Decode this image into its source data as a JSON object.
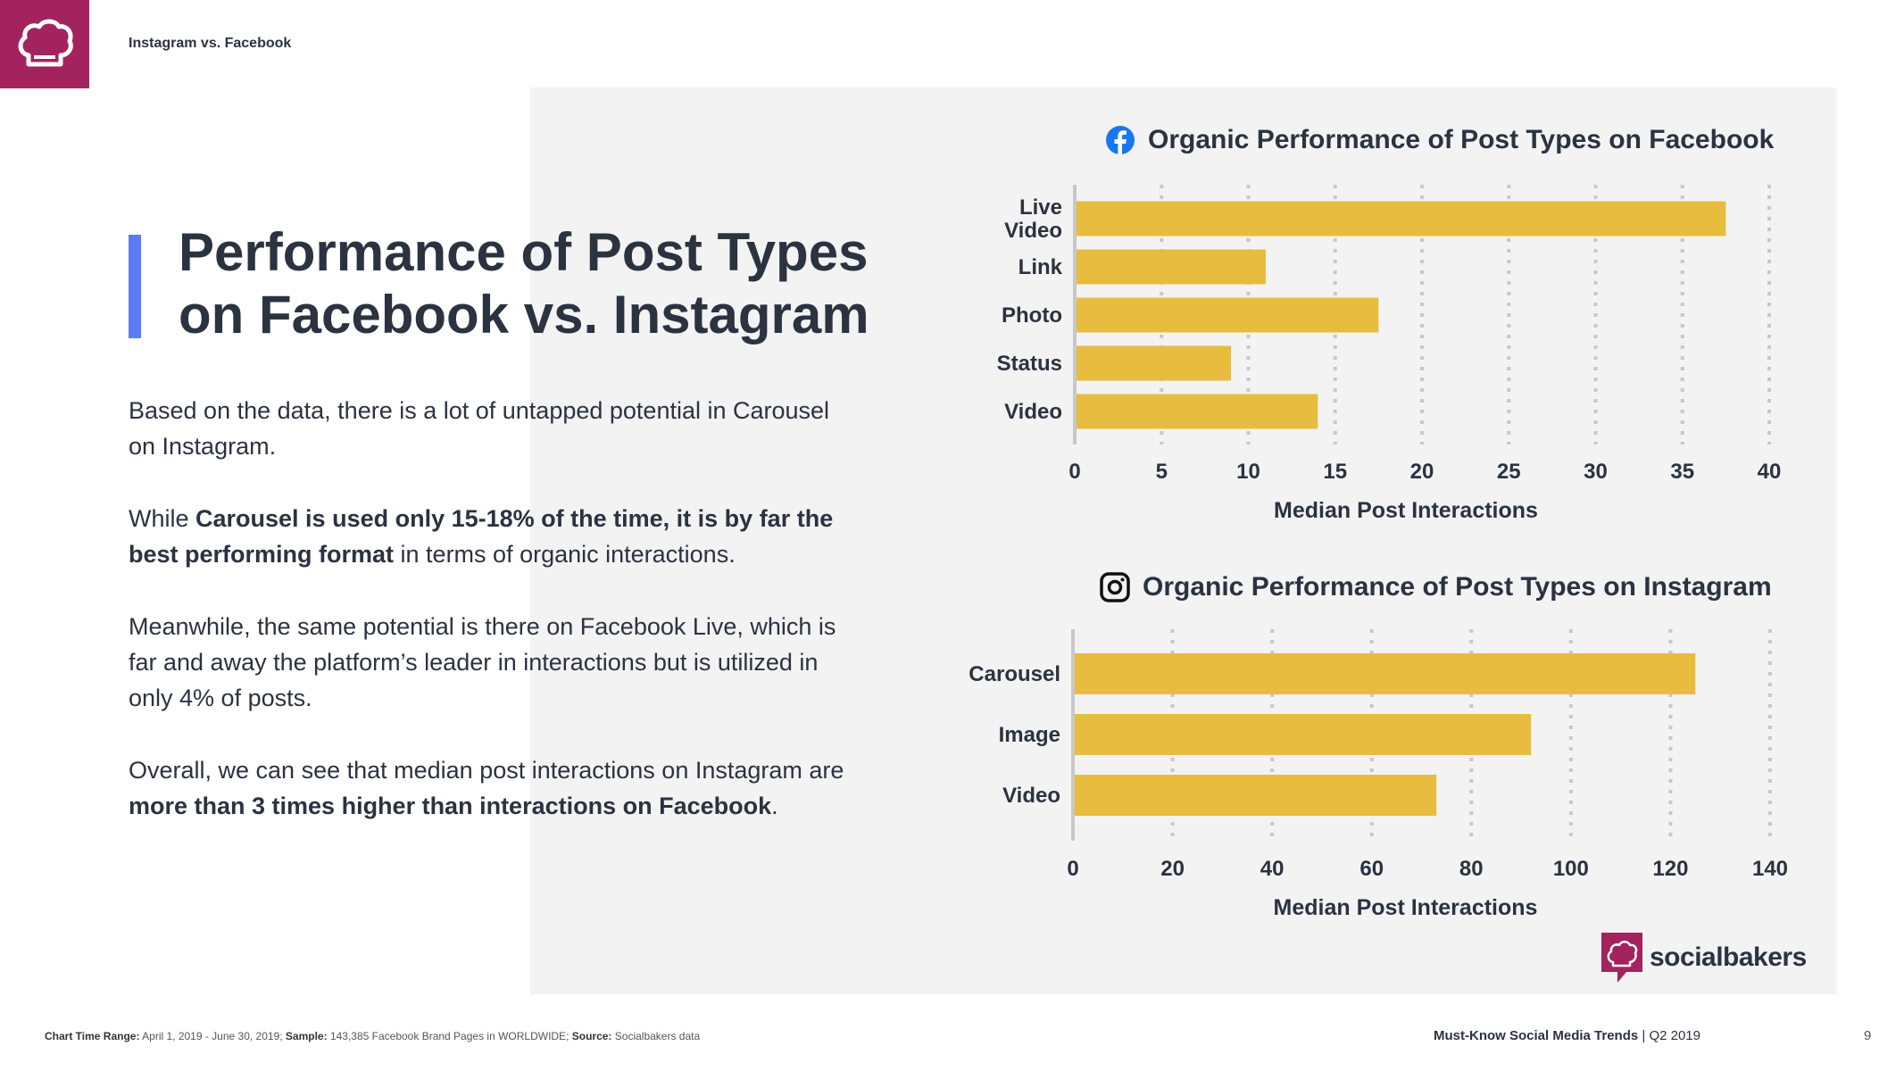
{
  "header": {
    "section_title": "Instagram vs. Facebook",
    "logo_icon": "chef-hat-icon"
  },
  "headline": {
    "line1": "Performance of Post Types",
    "line2": "on Facebook vs. Instagram"
  },
  "body": {
    "p1": "Based on the data, there is a lot of untapped potential in Carousel on Instagram.",
    "p2_prefix": "While ",
    "p2_bold": "Carousel is used only 15-18% of the time, it is by far the best performing format",
    "p2_suffix": " in terms of organic interactions.",
    "p3": "Meanwhile, the same potential is there on Facebook Live, which is far and away the platform’s leader in interactions but is utilized in only 4% of posts.",
    "p4_prefix": "Overall, we can see that median post interactions on Instagram are ",
    "p4_bold": "more than 3 times higher than interactions on Facebook",
    "p4_suffix": "."
  },
  "colors": {
    "brand": "#a3235f",
    "accent": "#5b7cf2",
    "bar": "#e8bc3f",
    "panel": "#f3f3f3",
    "text": "#2b3240"
  },
  "chart_data": [
    {
      "type": "bar",
      "orientation": "horizontal",
      "title": "Organic Performance of Post Types on Facebook",
      "icon": "facebook-icon",
      "categories": [
        "Live Video",
        "Link",
        "Photo",
        "Status",
        "Video"
      ],
      "category_lines": [
        [
          "Live",
          "Video"
        ],
        [
          "Link"
        ],
        [
          "Photo"
        ],
        [
          "Status"
        ],
        [
          "Video"
        ]
      ],
      "values": [
        37.5,
        11,
        17.5,
        9,
        14
      ],
      "xlabel": "Median Post Interactions",
      "ylabel": "",
      "xlim": [
        0,
        40
      ],
      "ticks": [
        0,
        5,
        10,
        15,
        20,
        25,
        30,
        35,
        40
      ],
      "grid": "dotted vertical"
    },
    {
      "type": "bar",
      "orientation": "horizontal",
      "title": "Organic Performance of Post Types on Instagram",
      "icon": "instagram-icon",
      "categories": [
        "Carousel",
        "Image",
        "Video"
      ],
      "category_lines": [
        [
          "Carousel"
        ],
        [
          "Image"
        ],
        [
          "Video"
        ]
      ],
      "values": [
        125,
        92,
        73
      ],
      "xlabel": "Median Post Interactions",
      "ylabel": "",
      "xlim": [
        0,
        140
      ],
      "ticks": [
        0,
        20,
        40,
        60,
        80,
        100,
        120,
        140
      ],
      "grid": "dotted vertical"
    }
  ],
  "brand": {
    "name": "socialbakers"
  },
  "footer": {
    "range_label": "Chart Time Range:",
    "range_value": " April 1, 2019 - June 30, 2019; ",
    "sample_label": "Sample:",
    "sample_value": " 143,385 Facebook Brand Pages in WORLDWIDE; ",
    "source_label": "Source:",
    "source_value": " Socialbakers data",
    "report_title": "Must-Know Social Media Trends",
    "report_period": " | Q2 2019",
    "page_number": "9"
  }
}
